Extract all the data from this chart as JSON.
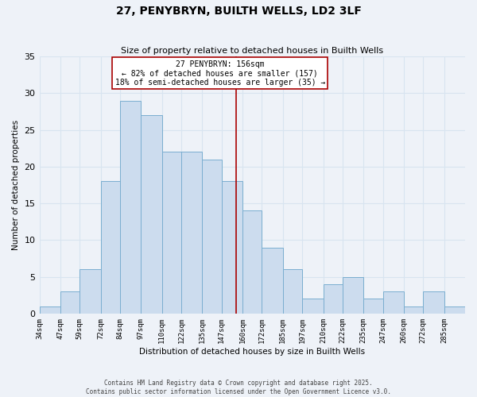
{
  "title": "27, PENYBRYN, BUILTH WELLS, LD2 3LF",
  "subtitle": "Size of property relative to detached houses in Builth Wells",
  "xlabel": "Distribution of detached houses by size in Builth Wells",
  "ylabel": "Number of detached properties",
  "bar_color": "#ccdcee",
  "bar_edge_color": "#7aaed0",
  "background_color": "#eef2f8",
  "grid_color": "#d8e4f0",
  "bins": [
    34,
    47,
    59,
    72,
    84,
    97,
    110,
    122,
    135,
    147,
    160,
    172,
    185,
    197,
    210,
    222,
    235,
    247,
    260,
    272,
    285
  ],
  "counts": [
    1,
    3,
    6,
    18,
    29,
    27,
    22,
    22,
    21,
    18,
    14,
    9,
    6,
    2,
    4,
    5,
    2,
    3,
    1,
    3,
    1
  ],
  "property_size": 156,
  "annotation_title": "27 PENYBRYN: 156sqm",
  "annotation_line1": "← 82% of detached houses are smaller (157)",
  "annotation_line2": "18% of semi-detached houses are larger (35) →",
  "vline_color": "#aa0000",
  "tick_labels": [
    "34sqm",
    "47sqm",
    "59sqm",
    "72sqm",
    "84sqm",
    "97sqm",
    "110sqm",
    "122sqm",
    "135sqm",
    "147sqm",
    "160sqm",
    "172sqm",
    "185sqm",
    "197sqm",
    "210sqm",
    "222sqm",
    "235sqm",
    "247sqm",
    "260sqm",
    "272sqm",
    "285sqm"
  ],
  "footer1": "Contains HM Land Registry data © Crown copyright and database right 2025.",
  "footer2": "Contains public sector information licensed under the Open Government Licence v3.0.",
  "ylim": [
    0,
    35
  ],
  "yticks": [
    0,
    5,
    10,
    15,
    20,
    25,
    30,
    35
  ]
}
